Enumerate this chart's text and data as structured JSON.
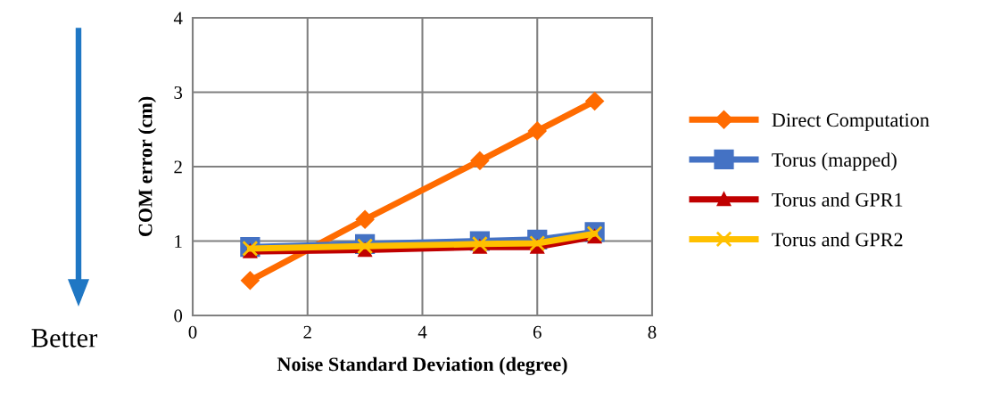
{
  "chart_data": {
    "type": "line",
    "xlabel": "Noise Standard Deviation (degree)",
    "ylabel": "COM error (cm)",
    "x": [
      1,
      3,
      5,
      6,
      7
    ],
    "series": [
      {
        "name": "Direct Computation",
        "color": "#ff6b00",
        "marker": "diamond",
        "values": [
          0.47,
          1.29,
          2.08,
          2.48,
          2.88
        ]
      },
      {
        "name": "Torus (mapped)",
        "color": "#4472c4",
        "marker": "square",
        "values": [
          0.92,
          0.96,
          1.0,
          1.02,
          1.12
        ]
      },
      {
        "name": "Torus and GPR1",
        "color": "#c00000",
        "marker": "triangle",
        "values": [
          0.86,
          0.88,
          0.92,
          0.92,
          1.06
        ]
      },
      {
        "name": "Torus and GPR2",
        "color": "#ffc000",
        "marker": "cross",
        "values": [
          0.9,
          0.93,
          0.96,
          0.97,
          1.1
        ]
      }
    ],
    "xlim": [
      0,
      8
    ],
    "xticks": [
      0,
      2,
      4,
      6,
      8
    ],
    "ylim": [
      0,
      4
    ],
    "yticks": [
      0,
      1,
      2,
      3,
      4
    ],
    "grid": true,
    "legend": "right",
    "line_style": "solid",
    "annotations": [
      "Better"
    ]
  }
}
